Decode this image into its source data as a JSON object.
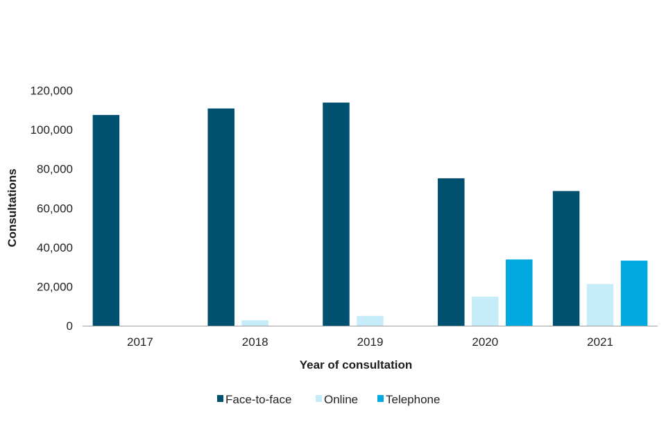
{
  "chart_data": {
    "type": "bar",
    "title": "",
    "xlabel": "Year of consultation",
    "ylabel": "Consultations",
    "categories": [
      "2017",
      "2018",
      "2019",
      "2020",
      "2021"
    ],
    "ylim": [
      0,
      120000
    ],
    "yticks": [
      0,
      20000,
      40000,
      60000,
      80000,
      100000,
      120000
    ],
    "ytick_labels": [
      "0",
      "20,000",
      "40,000",
      "60,000",
      "80,000",
      "100,000",
      "120,000"
    ],
    "grid": false,
    "legend_position": "bottom",
    "series": [
      {
        "name": "Face-to-face",
        "color": "#005070",
        "values": [
          107500,
          110800,
          113800,
          75200,
          68700
        ]
      },
      {
        "name": "Online",
        "color": "#c6ecfa",
        "values": [
          0,
          2800,
          5000,
          14800,
          21300
        ]
      },
      {
        "name": "Telephone",
        "color": "#00a9e0",
        "values": [
          0,
          0,
          0,
          33800,
          33200
        ]
      }
    ]
  }
}
